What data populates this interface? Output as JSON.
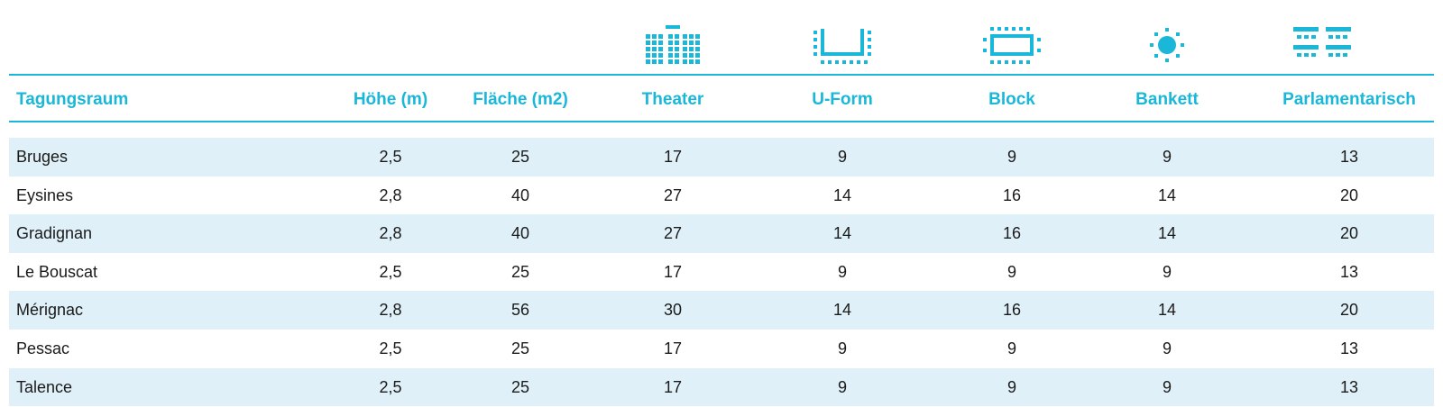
{
  "accent_color": "#1bb7d8",
  "shade_color": "#dff0f8",
  "setup_icons": [
    "theater-icon",
    "u-form-icon",
    "block-icon",
    "bankett-icon",
    "parlamentarisch-icon"
  ],
  "headers": {
    "room": "Tagungsraum",
    "height": "Höhe (m)",
    "area": "Fläche (m2)",
    "theater": "Theater",
    "uform": "U-Form",
    "block": "Block",
    "bankett": "Bankett",
    "parlament": "Parlamentarisch"
  },
  "rows": [
    {
      "room": "Bruges",
      "height": "2,5",
      "area": "25",
      "theater": "17",
      "uform": "9",
      "block": "9",
      "bankett": "9",
      "parlament": "13"
    },
    {
      "room": "Eysines",
      "height": "2,8",
      "area": "40",
      "theater": "27",
      "uform": "14",
      "block": "16",
      "bankett": "14",
      "parlament": "20"
    },
    {
      "room": "Gradignan",
      "height": "2,8",
      "area": "40",
      "theater": "27",
      "uform": "14",
      "block": "16",
      "bankett": "14",
      "parlament": "20"
    },
    {
      "room": "Le Bouscat",
      "height": "2,5",
      "area": "25",
      "theater": "17",
      "uform": "9",
      "block": "9",
      "bankett": "9",
      "parlament": "13"
    },
    {
      "room": "Mérignac",
      "height": "2,8",
      "area": "56",
      "theater": "30",
      "uform": "14",
      "block": "16",
      "bankett": "14",
      "parlament": "20"
    },
    {
      "room": "Pessac",
      "height": "2,5",
      "area": "25",
      "theater": "17",
      "uform": "9",
      "block": "9",
      "bankett": "9",
      "parlament": "13"
    },
    {
      "room": "Talence",
      "height": "2,5",
      "area": "25",
      "theater": "17",
      "uform": "9",
      "block": "9",
      "bankett": "9",
      "parlament": "13"
    }
  ]
}
